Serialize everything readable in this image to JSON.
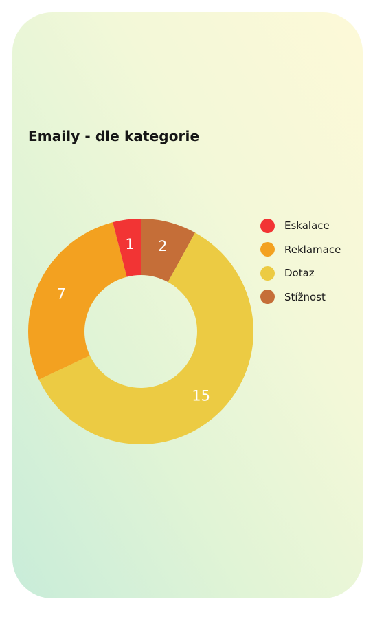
{
  "chart_data": {
    "type": "pie",
    "variant": "donut",
    "title": "Emaily - dle kategorie",
    "categories": [
      "Eskalace",
      "Reklamace",
      "Dotaz",
      "Stížnost"
    ],
    "values": [
      1,
      7,
      15,
      2
    ],
    "colors": [
      "#f23434",
      "#f3a120",
      "#eccb43",
      "#c56e38"
    ],
    "slice_order": [
      "Stížnost",
      "Dotaz",
      "Reklamace",
      "Eskalace"
    ],
    "start": "top, clockwise",
    "data_labels": true,
    "legend_position": "right"
  }
}
